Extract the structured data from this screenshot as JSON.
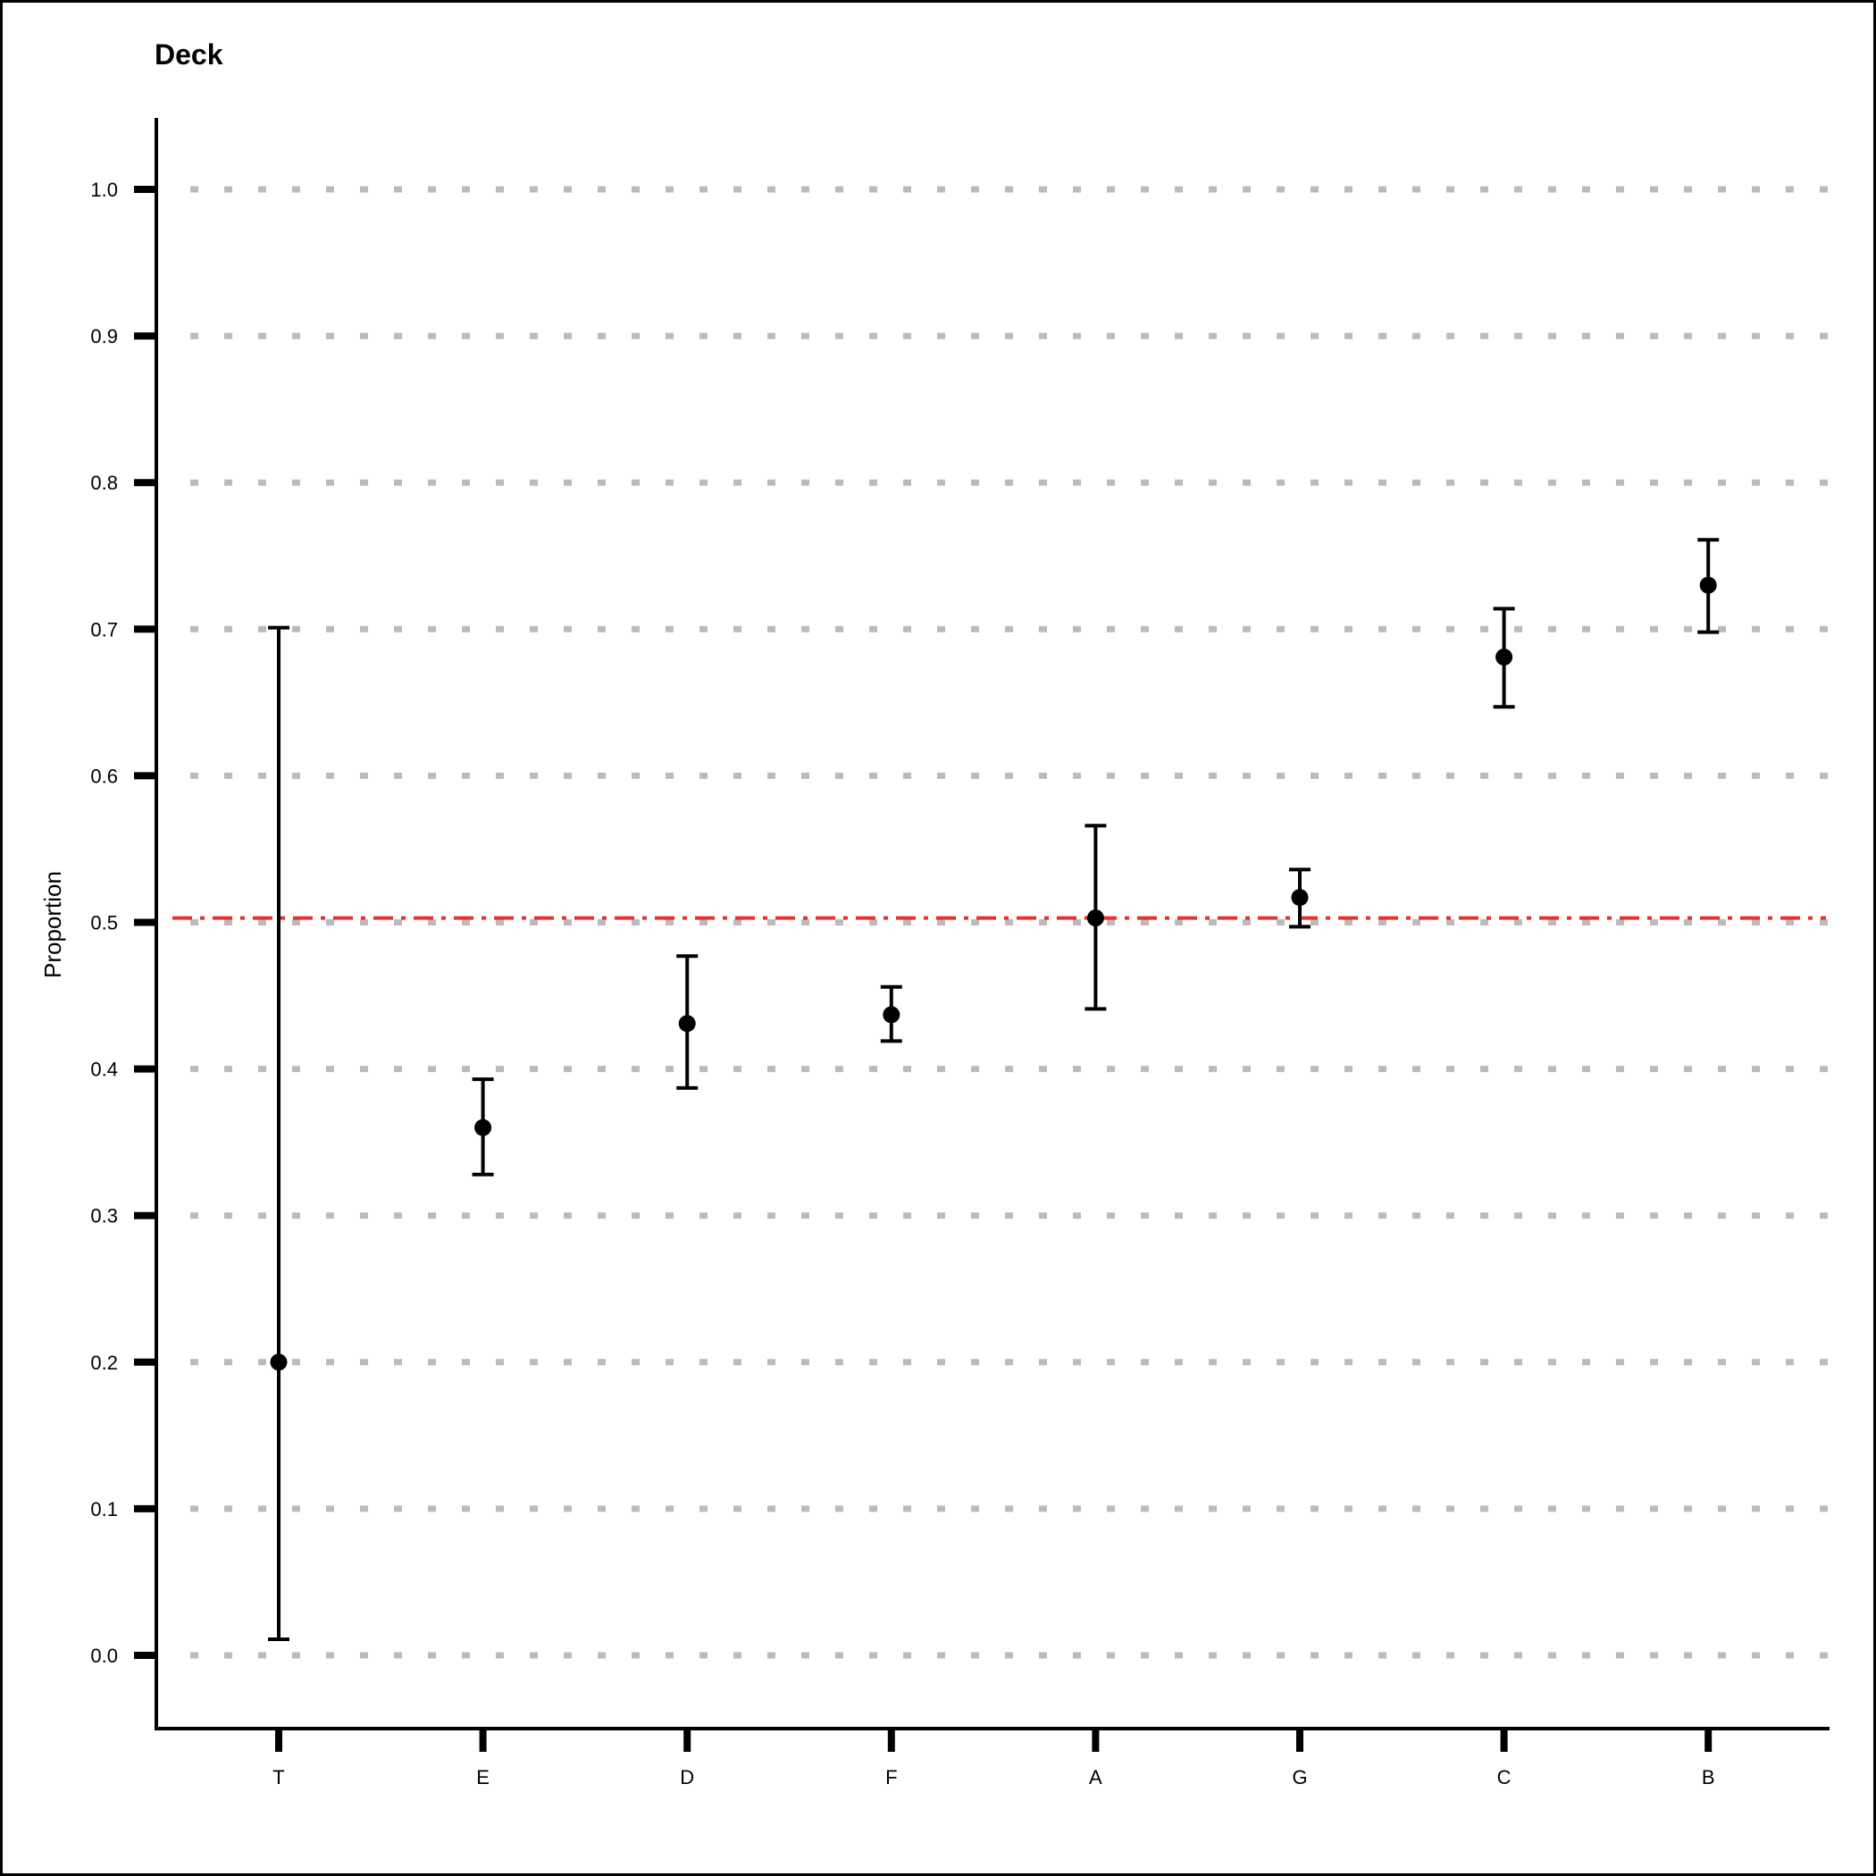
{
  "chart_data": {
    "type": "scatter",
    "title": "Deck",
    "xlabel": "",
    "ylabel": "Proportion",
    "categories": [
      "T",
      "E",
      "D",
      "F",
      "A",
      "G",
      "C",
      "B"
    ],
    "values": [
      0.2,
      0.36,
      0.431,
      0.437,
      0.503,
      0.517,
      0.681,
      0.73
    ],
    "lower": [
      0.011,
      0.328,
      0.387,
      0.419,
      0.441,
      0.497,
      0.647,
      0.698
    ],
    "upper": [
      0.701,
      0.393,
      0.477,
      0.456,
      0.566,
      0.536,
      0.714,
      0.761
    ],
    "reference_line": 0.503,
    "ylim": [
      -0.05,
      1.05
    ],
    "yticks": [
      "0.0",
      "0.1",
      "0.2",
      "0.3",
      "0.4",
      "0.5",
      "0.6",
      "0.7",
      "0.8",
      "0.9",
      "1.0"
    ],
    "grid": true,
    "colors": {
      "points": "#000000",
      "grid": "#bbbbbb",
      "reference_line": "#e8302f"
    }
  }
}
